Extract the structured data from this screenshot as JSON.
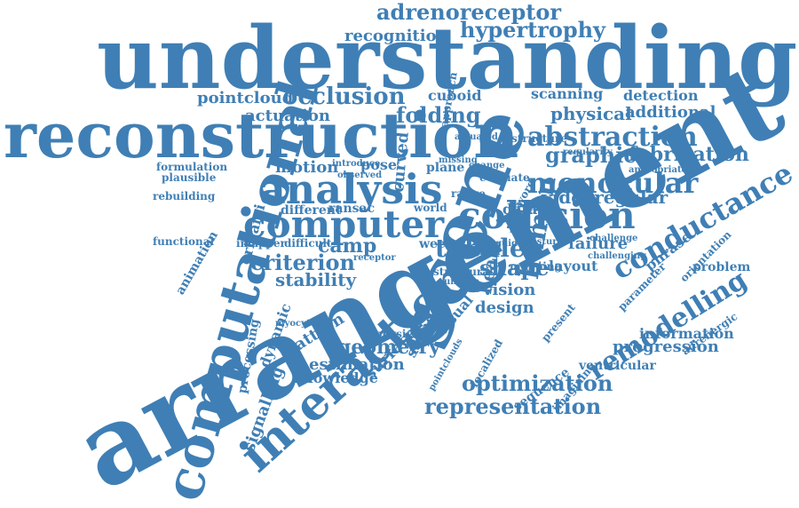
{
  "colors": {
    "word": "#3f7fb5",
    "background": "#ffffff"
  },
  "words": [
    "understanding",
    "reconstruction",
    "arrangement",
    "scene",
    "computational",
    "interaction",
    "analysis",
    "computer",
    "collision",
    "conductance",
    "remodelling",
    "monocular",
    "abstraction",
    "adrenoreceptor",
    "hypertrophy",
    "recognition",
    "occlusion",
    "pointcloud",
    "actuation",
    "folding",
    "physical",
    "additional",
    "scanning",
    "detection",
    "graphic",
    "fabrication",
    "videoregular",
    "human",
    "motion",
    "pose",
    "plane",
    "origami",
    "formulation",
    "plausible",
    "rebuilding",
    "animation",
    "functional",
    "imapper",
    "difficult",
    "camp",
    "tubule",
    "criterion",
    "stability",
    "pattern",
    "signalling",
    "processing",
    "dynamic",
    "myocyte",
    "geometry",
    "estimation",
    "knowledge",
    "surface",
    "string",
    "physic",
    "shape",
    "vision",
    "design",
    "failure",
    "layout",
    "problem",
    "adrenergic",
    "phrase",
    "information",
    "progression",
    "sequence",
    "ventricular",
    "optimization",
    "representation",
    "different",
    "ransac",
    "world",
    "week",
    "data",
    "heart",
    "cuboid",
    "approach",
    "curved",
    "structure",
    "range",
    "evaluate",
    "body",
    "visual",
    "structural",
    "unseen",
    "pointclouds",
    "localized",
    "present",
    "imagining",
    "parameter",
    "orientation",
    "appropriate",
    "challenge",
    "challenging",
    "mapping",
    "disturb",
    "guided",
    "receptor",
    "driven",
    "actuated",
    "introduce",
    "observed",
    "missing",
    "change",
    "word",
    "regularity"
  ]
}
